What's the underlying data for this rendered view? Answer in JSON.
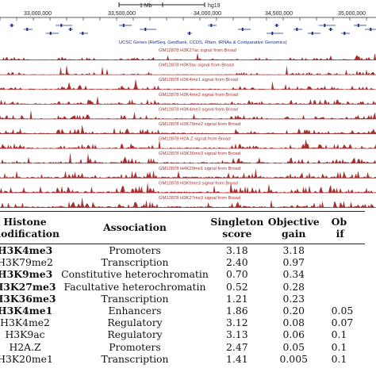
{
  "browser": {
    "scale_label": "1 Mb",
    "assembly": "hg19",
    "coordinates": [
      "33,000,000",
      "33,500,000",
      "34,000,000",
      "34,500,000",
      "35,000,000"
    ],
    "gene_track_label": "UCSC Genes (RefSeq, GenBank, CCDS, Rfam, tRNAs & Comparative Genomics)",
    "track_color": "#a83232",
    "tracks": [
      {
        "label": "GM12878 H3K27ac signal from Broad",
        "level": 0.35
      },
      {
        "label": "GM12878 H3K9ac signal from Broad",
        "level": 0.3
      },
      {
        "label": "GM12878 H3K4me1 signal from Broad",
        "level": 0.45
      },
      {
        "label": "GM12878 H3K4me2 signal from Broad",
        "level": 0.5
      },
      {
        "label": "GM12878 H3K4me3 signal from Broad",
        "level": 0.45
      },
      {
        "label": "GM12878 H3K79me2 signal from Broad",
        "level": 0.55
      },
      {
        "label": "GM12878 H2A.Z signal from Broad",
        "level": 0.55
      },
      {
        "label": "GM12878 H3K36me3 signal from Broad",
        "level": 0.6
      },
      {
        "label": "GM12878 H4K20me1 signal from Broad",
        "level": 0.75
      },
      {
        "label": "GM12878 H3K9me3 signal from Broad",
        "level": 0.7
      },
      {
        "label": "GM12878 H3K27me3 signal from Broad",
        "level": 0.7
      }
    ]
  },
  "table": {
    "headers": {
      "modification": [
        "Histone",
        "modification"
      ],
      "association": "Association",
      "singleton": [
        "Singleton",
        "score"
      ],
      "gain": [
        "Objective",
        "gain"
      ],
      "last": [
        "Ob",
        "if"
      ]
    },
    "rows": [
      {
        "mod": "H3K4me3",
        "bold": true,
        "assoc": "Promoters",
        "singleton": "3.18",
        "gain": "3.18",
        "last": ""
      },
      {
        "mod": "H3K79me2",
        "bold": false,
        "assoc": "Transcription",
        "singleton": "2.40",
        "gain": "0.97",
        "last": ""
      },
      {
        "mod": "H3K9me3",
        "bold": true,
        "assoc": "Constitutive heterochromatin",
        "singleton": "0.70",
        "gain": "0.34",
        "last": ""
      },
      {
        "mod": "H3K27me3",
        "bold": true,
        "assoc": "Facultative heterochromatin",
        "singleton": "0.52",
        "gain": "0.28",
        "last": ""
      },
      {
        "mod": "H3K36me3",
        "bold": true,
        "assoc": "Transcription",
        "singleton": "1.21",
        "gain": "0.23",
        "last": ""
      },
      {
        "mod": "H3K4me1",
        "bold": true,
        "assoc": "Enhancers",
        "singleton": "1.86",
        "gain": "0.20",
        "last": "0.05"
      },
      {
        "mod": "H3K4me2",
        "bold": false,
        "assoc": "Regulatory",
        "singleton": "3.12",
        "gain": "0.08",
        "last": "0.07"
      },
      {
        "mod": "H3K9ac",
        "bold": false,
        "assoc": "Regulatory",
        "singleton": "3.13",
        "gain": "0.06",
        "last": "0.1"
      },
      {
        "mod": "H2A.Z",
        "bold": false,
        "assoc": "Promoters",
        "singleton": "2.47",
        "gain": "0.05",
        "last": "0.1"
      },
      {
        "mod": "H3K20me1",
        "bold": false,
        "assoc": "Transcription",
        "singleton": "1.41",
        "gain": "0.005",
        "last": "0.1"
      }
    ]
  }
}
